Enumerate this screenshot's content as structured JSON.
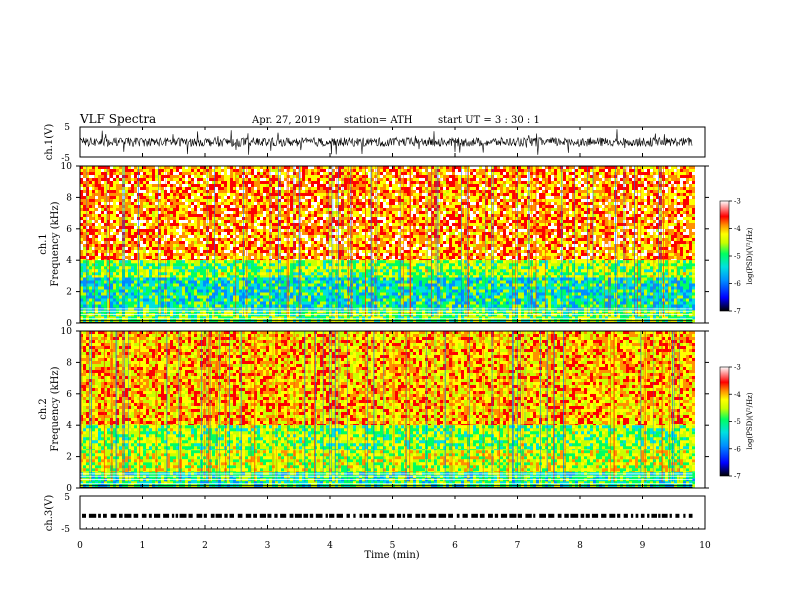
{
  "header": {
    "title": "VLF  Spectra",
    "date": "Apr. 27, 2019",
    "station": "station= ATH",
    "start_ut": "start  UT  =    3  : 30 : 1"
  },
  "colors": {
    "spectrum": [
      "#000000",
      "#0000ff",
      "#0090ff",
      "#00e0e0",
      "#00ff60",
      "#c8ff00",
      "#ffff00",
      "#ff9000",
      "#ff0000",
      "#ffffff"
    ]
  },
  "chart_data": [
    {
      "type": "line",
      "panel": "ch1-waveform",
      "ylabel": "ch.1(V)",
      "yticks": [
        "5",
        "-5"
      ],
      "ylim": [
        -5,
        5
      ],
      "xlim": [
        0,
        10
      ],
      "data_end_min": 9.8
    },
    {
      "type": "heatmap",
      "panel": "ch1-spectrogram",
      "ylabel_top": "ch.1",
      "ylabel": "Frequency  (kHz)",
      "yticks": [
        "10",
        "8",
        "6",
        "4",
        "2",
        "0"
      ],
      "ylim": [
        0,
        10
      ],
      "xlim": [
        0,
        10
      ],
      "data_end_min": 9.8,
      "colorbar": {
        "ticks": [
          "-3",
          "-4",
          "-5",
          "-6",
          "-7"
        ],
        "label": "log(PSD)(V²/Hz)",
        "range": [
          -7,
          -3
        ]
      },
      "bands": [
        {
          "from_khz": 4.0,
          "to_khz": 10.0,
          "level": -3.8
        },
        {
          "from_khz": 2.9,
          "to_khz": 4.0,
          "level": -4.9
        },
        {
          "from_khz": 0.8,
          "to_khz": 2.9,
          "level": -5.5
        },
        {
          "from_khz": 0.0,
          "to_khz": 0.8,
          "level": -5.0
        }
      ]
    },
    {
      "type": "heatmap",
      "panel": "ch2-spectrogram",
      "ylabel_top": "ch.2",
      "ylabel": "Frequency  (kHz)",
      "yticks": [
        "10",
        "8",
        "6",
        "4",
        "2",
        "0"
      ],
      "ylim": [
        0,
        10
      ],
      "xlim": [
        0,
        10
      ],
      "data_end_min": 9.8,
      "colorbar": {
        "ticks": [
          "-3",
          "-4",
          "-5",
          "-6",
          "-7"
        ],
        "label": "log(PSD)(V²/Hz)",
        "range": [
          -7,
          -3
        ]
      },
      "bands": [
        {
          "from_khz": 4.0,
          "to_khz": 10.0,
          "level": -4.1
        },
        {
          "from_khz": 2.4,
          "to_khz": 4.0,
          "level": -4.9
        },
        {
          "from_khz": 1.0,
          "to_khz": 2.4,
          "level": -4.6
        },
        {
          "from_khz": 0.0,
          "to_khz": 1.0,
          "level": -5.3
        }
      ]
    },
    {
      "type": "line",
      "panel": "ch3-waveform",
      "ylabel": "ch.3(V)",
      "yticks": [
        "5",
        "-5"
      ],
      "ylim": [
        -5,
        5
      ],
      "xlim": [
        0,
        10
      ],
      "level_v": -1.0,
      "data_end_min": 9.8
    }
  ],
  "xaxis": {
    "label": "Time  (min)",
    "ticks": [
      "0",
      "1",
      "2",
      "3",
      "4",
      "5",
      "6",
      "7",
      "8",
      "9",
      "10"
    ],
    "range": [
      0,
      10
    ]
  }
}
